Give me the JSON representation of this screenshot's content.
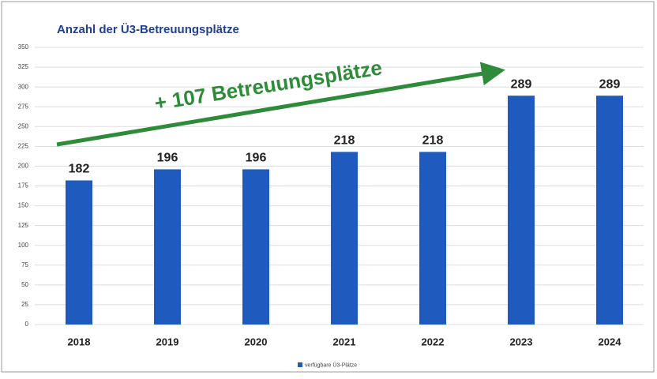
{
  "chart_data": {
    "type": "bar",
    "title": "Anzahl der Ü3-Betreuungsplätze",
    "annotation": "+ 107 Betreuungsplätze",
    "categories": [
      "2018",
      "2019",
      "2020",
      "2021",
      "2022",
      "2023",
      "2024"
    ],
    "series": [
      {
        "name": "verfügbare Ü3-Plätze",
        "color": "#1f5bbf",
        "values": [
          182,
          196,
          196,
          218,
          218,
          289,
          289
        ]
      }
    ],
    "ylim": [
      0,
      350
    ],
    "yticks": [
      0,
      25,
      50,
      75,
      100,
      125,
      150,
      175,
      200,
      225,
      250,
      275,
      300,
      325,
      350
    ],
    "grid": true,
    "legend": "bottom"
  }
}
